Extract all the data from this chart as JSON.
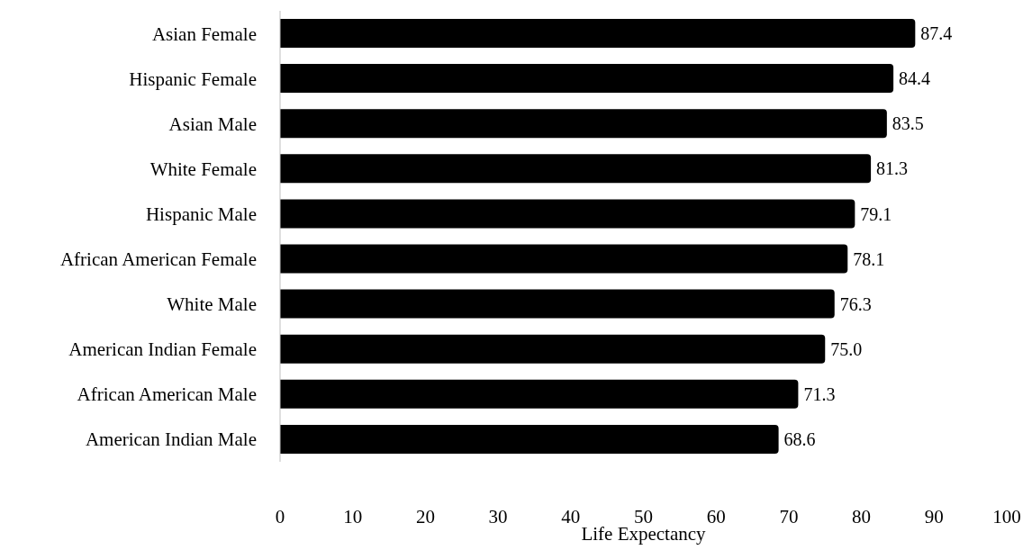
{
  "chart_data": {
    "type": "bar",
    "orientation": "horizontal",
    "xlabel": "Life Expectancy",
    "categories": [
      "Asian Female",
      "Hispanic Female",
      "Asian Male",
      "White Female",
      "Hispanic Male",
      "African American Female",
      "White Male",
      "American Indian Female",
      "African American Male",
      "American Indian Male"
    ],
    "values": [
      87.4,
      84.4,
      83.5,
      81.3,
      79.1,
      78.1,
      76.3,
      75.0,
      71.3,
      68.6
    ],
    "value_labels": [
      "87.4",
      "84.4",
      "83.5",
      "81.3",
      "79.1",
      "78.1",
      "76.3",
      "75.0",
      "71.3",
      "68.6"
    ],
    "color": "#000000",
    "xlim": [
      0,
      100
    ],
    "xticks": [
      0,
      10,
      20,
      30,
      40,
      50,
      60,
      70,
      80,
      90,
      100
    ],
    "grid": false,
    "legend": false
  }
}
